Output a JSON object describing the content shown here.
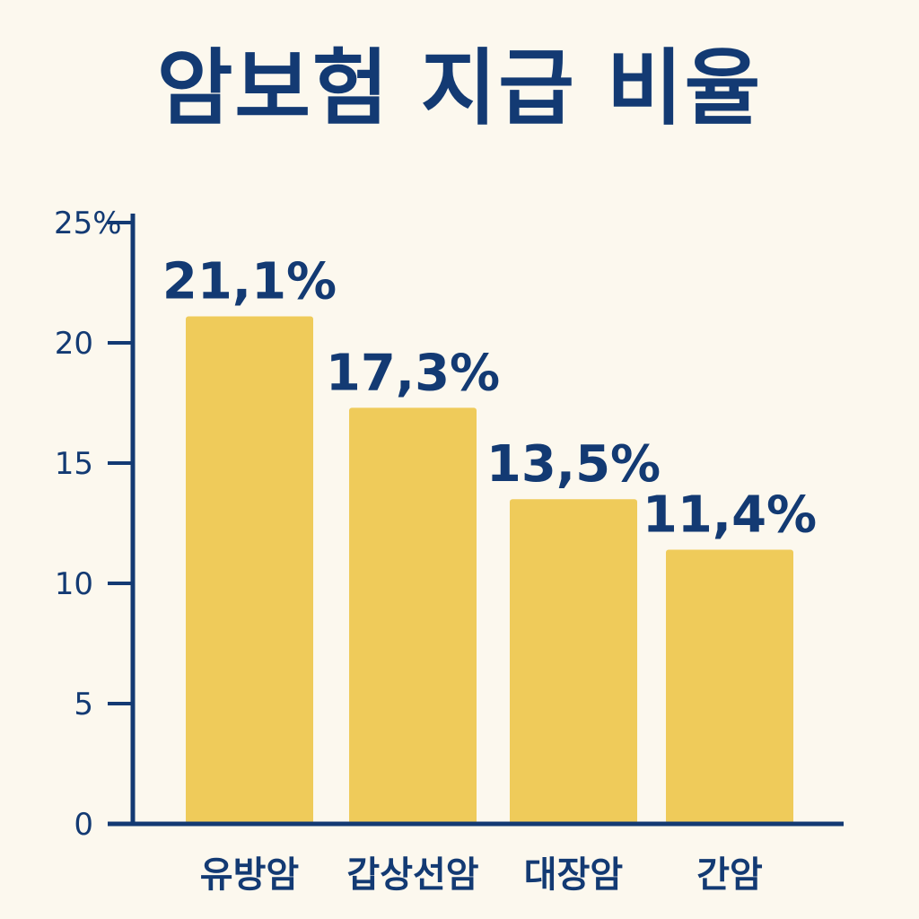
{
  "chart_data": {
    "type": "bar",
    "title": "암보험 지급 비율",
    "xlabel": "",
    "ylabel": "",
    "categories": [
      "유방암",
      "갑상선암",
      "대장암",
      "간암"
    ],
    "values": [
      21.1,
      17.3,
      13.5,
      11.4
    ],
    "data_labels": [
      "21,1%",
      "17,3%",
      "13,5%",
      "11,4%"
    ],
    "ylim": [
      0,
      25
    ],
    "yticks": [
      0,
      5,
      10,
      15,
      20,
      25
    ],
    "ytick_labels": [
      "0",
      "5",
      "10",
      "15",
      "20",
      "25%"
    ],
    "grid": false,
    "colors": {
      "bar": "#efcb5a",
      "axis": "#133a73",
      "text": "#133a73",
      "background": "#fcf8ee"
    }
  }
}
